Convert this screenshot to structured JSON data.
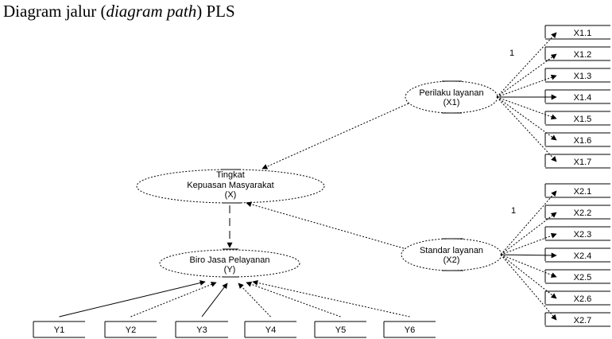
{
  "title": {
    "prefix": "Diagram jalur (",
    "italic": "diagram path",
    "suffix": ") PLS"
  },
  "constructs": {
    "x1": {
      "lines": [
        "Perilaku layanan",
        "(X1)"
      ]
    },
    "x2": {
      "lines": [
        "Standar layanan",
        "(X2)"
      ]
    },
    "x": {
      "lines": [
        "Tingkat",
        "Kepuasan Masyarakat",
        "(X)"
      ]
    },
    "y": {
      "lines": [
        "Biro Jasa Pelayanan",
        "(Y)"
      ]
    }
  },
  "x1_indicators": [
    "X1.1",
    "X1.2",
    "X1.3",
    "X1.4",
    "X1.5",
    "X1.6",
    "X1.7"
  ],
  "x2_indicators": [
    "X2.1",
    "X2.2",
    "X2.3",
    "X2.4",
    "X2.5",
    "X2.6",
    "X2.7"
  ],
  "y_indicators": [
    "Y1",
    "Y2",
    "Y3",
    "Y4",
    "Y5",
    "Y6"
  ],
  "loading_labels": {
    "x1": "1",
    "x2": "1"
  }
}
